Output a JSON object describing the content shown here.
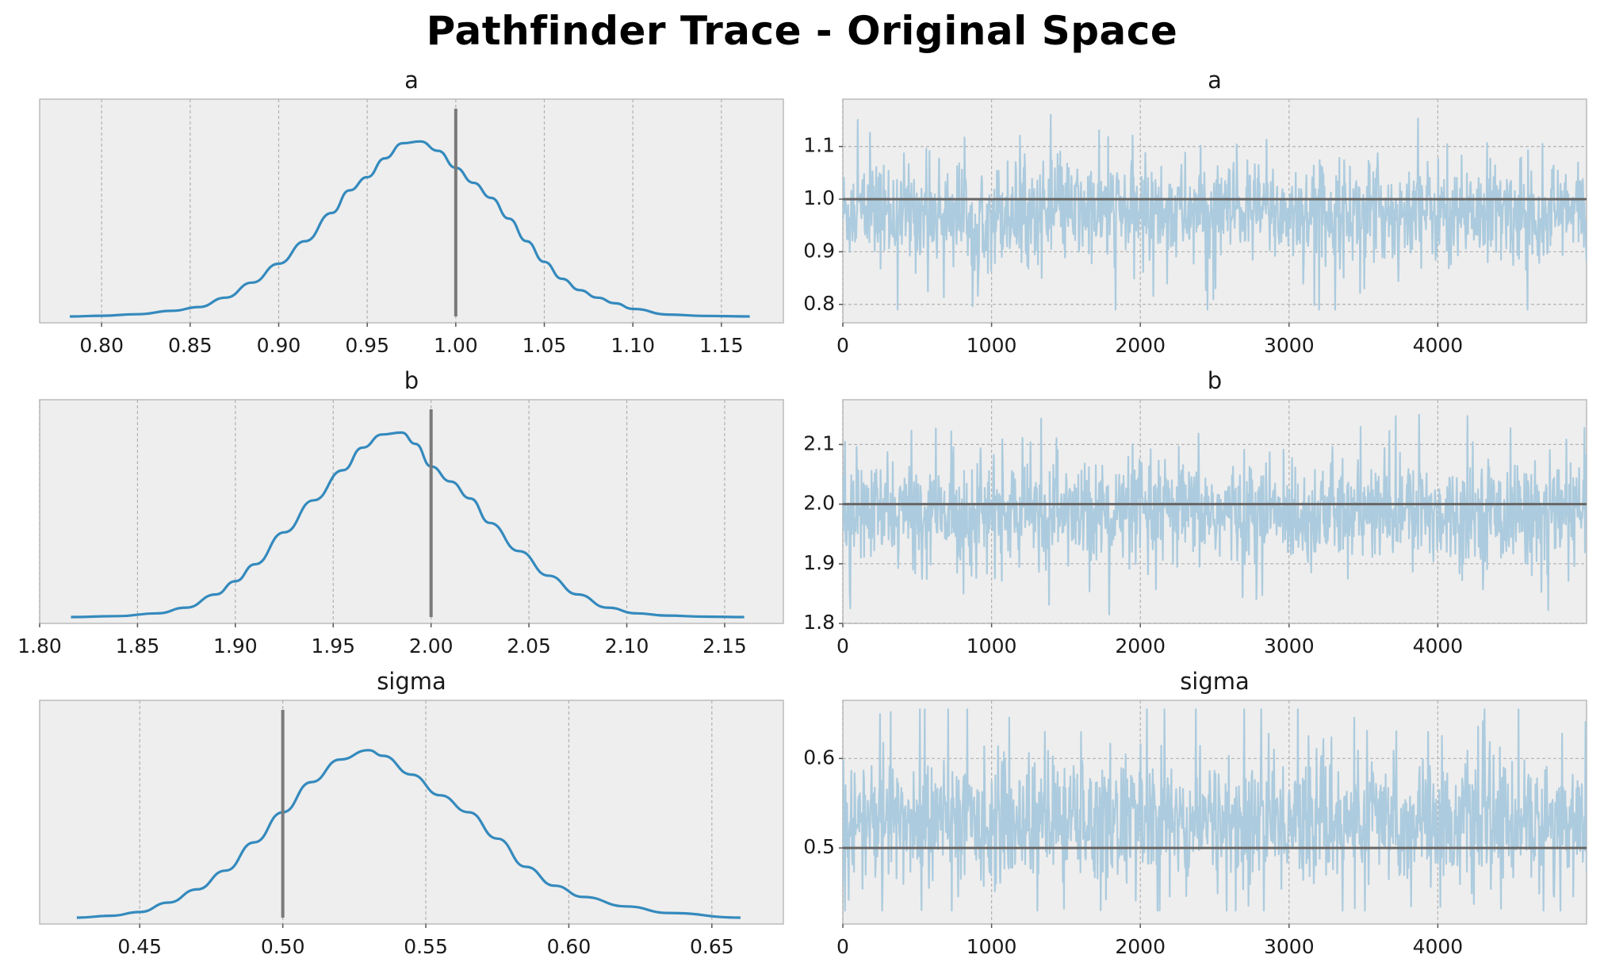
{
  "title": "Pathfinder Trace - Original Space",
  "colors": {
    "kde_line": "#348ABD",
    "trace_fill": "#A8C8DC",
    "ref_line": "#7a7a7a",
    "axes_bg": "#EEEEEE",
    "grid": "#B2B2B2"
  },
  "chart_data": [
    {
      "type": "line",
      "panel": "kde",
      "title": "a",
      "xlabel": "",
      "ylabel": "",
      "xlim": [
        0.765,
        1.185
      ],
      "xticks": [
        0.8,
        0.85,
        0.9,
        0.95,
        1.0,
        1.05,
        1.1,
        1.15
      ],
      "xtick_labels": [
        "0.80",
        "0.85",
        "0.90",
        "0.95",
        "1.00",
        "1.05",
        "1.10",
        "1.15"
      ],
      "yticks": [],
      "grid": true,
      "reference_value": 1.0,
      "x": [
        0.782,
        0.8,
        0.82,
        0.84,
        0.855,
        0.87,
        0.885,
        0.9,
        0.915,
        0.93,
        0.94,
        0.95,
        0.96,
        0.97,
        0.98,
        0.99,
        1.0,
        1.01,
        1.02,
        1.03,
        1.04,
        1.05,
        1.06,
        1.07,
        1.08,
        1.09,
        1.1,
        1.12,
        1.14,
        1.166
      ],
      "y": [
        0.0,
        0.004,
        0.012,
        0.03,
        0.05,
        0.1,
        0.18,
        0.28,
        0.4,
        0.55,
        0.67,
        0.74,
        0.84,
        0.92,
        0.93,
        0.88,
        0.79,
        0.71,
        0.63,
        0.52,
        0.4,
        0.29,
        0.2,
        0.14,
        0.1,
        0.07,
        0.04,
        0.01,
        0.003,
        0.0
      ]
    },
    {
      "type": "line",
      "panel": "trace",
      "title": "a",
      "xlabel": "",
      "ylabel": "",
      "xlim": [
        0,
        5000
      ],
      "ylim": [
        0.765,
        1.19
      ],
      "xticks": [
        0,
        1000,
        2000,
        3000,
        4000
      ],
      "xtick_labels": [
        "0",
        "1000",
        "2000",
        "3000",
        "4000"
      ],
      "yticks": [
        0.8,
        0.9,
        1.0,
        1.1
      ],
      "ytick_labels": [
        "0.8",
        "0.9",
        "1.0",
        "1.1"
      ],
      "grid": true,
      "reference_value": 1.0,
      "n_draws": 5000,
      "center": 0.975,
      "band": [
        0.88,
        1.07
      ],
      "extremes": [
        0.79,
        1.16
      ]
    },
    {
      "type": "line",
      "panel": "kde",
      "title": "b",
      "xlabel": "",
      "ylabel": "",
      "xlim": [
        1.8,
        2.18
      ],
      "xticks": [
        1.8,
        1.85,
        1.9,
        1.95,
        2.0,
        2.05,
        2.1,
        2.15
      ],
      "xtick_labels": [
        "1.80",
        "1.85",
        "1.90",
        "1.95",
        "2.00",
        "2.05",
        "2.10",
        "2.15"
      ],
      "yticks": [],
      "grid": true,
      "reference_value": 2.0,
      "x": [
        1.816,
        1.84,
        1.86,
        1.875,
        1.89,
        1.9,
        1.91,
        1.925,
        1.94,
        1.955,
        1.965,
        1.975,
        1.985,
        1.992,
        2.0,
        2.01,
        2.02,
        2.03,
        2.045,
        2.06,
        2.075,
        2.09,
        2.105,
        2.12,
        2.14,
        2.16
      ],
      "y": [
        0.0,
        0.005,
        0.02,
        0.05,
        0.12,
        0.19,
        0.28,
        0.45,
        0.62,
        0.78,
        0.9,
        0.97,
        0.98,
        0.92,
        0.8,
        0.72,
        0.63,
        0.5,
        0.35,
        0.22,
        0.12,
        0.05,
        0.02,
        0.008,
        0.002,
        0.0
      ]
    },
    {
      "type": "line",
      "panel": "trace",
      "title": "b",
      "xlabel": "",
      "ylabel": "",
      "xlim": [
        0,
        5000
      ],
      "ylim": [
        1.8,
        2.175
      ],
      "xticks": [
        0,
        1000,
        2000,
        3000,
        4000
      ],
      "xtick_labels": [
        "0",
        "1000",
        "2000",
        "3000",
        "4000"
      ],
      "yticks": [
        1.8,
        1.9,
        2.0,
        2.1
      ],
      "ytick_labels": [
        "1.8",
        "1.9",
        "2.0",
        "2.1"
      ],
      "grid": true,
      "reference_value": 2.0,
      "n_draws": 5000,
      "center": 1.985,
      "band": [
        1.9,
        2.07
      ],
      "extremes": [
        1.815,
        2.16
      ]
    },
    {
      "type": "line",
      "panel": "kde",
      "title": "sigma",
      "xlabel": "",
      "ylabel": "",
      "xlim": [
        0.415,
        0.675
      ],
      "xticks": [
        0.45,
        0.5,
        0.55,
        0.6,
        0.65
      ],
      "xtick_labels": [
        "0.45",
        "0.50",
        "0.55",
        "0.60",
        "0.65"
      ],
      "yticks": [],
      "grid": true,
      "reference_value": 0.5,
      "x": [
        0.428,
        0.44,
        0.45,
        0.46,
        0.47,
        0.48,
        0.49,
        0.5,
        0.51,
        0.52,
        0.53,
        0.535,
        0.545,
        0.555,
        0.565,
        0.575,
        0.585,
        0.595,
        0.605,
        0.62,
        0.635,
        0.66
      ],
      "y": [
        0.0,
        0.01,
        0.03,
        0.08,
        0.15,
        0.25,
        0.4,
        0.56,
        0.72,
        0.84,
        0.89,
        0.86,
        0.76,
        0.65,
        0.56,
        0.42,
        0.27,
        0.17,
        0.11,
        0.06,
        0.025,
        0.0
      ]
    },
    {
      "type": "line",
      "panel": "trace",
      "title": "sigma",
      "xlabel": "",
      "ylabel": "",
      "xlim": [
        0,
        5000
      ],
      "ylim": [
        0.415,
        0.665
      ],
      "xticks": [
        0,
        1000,
        2000,
        3000,
        4000
      ],
      "xtick_labels": [
        "0",
        "1000",
        "2000",
        "3000",
        "4000"
      ],
      "yticks": [
        0.5,
        0.6
      ],
      "ytick_labels": [
        "0.5",
        "0.6"
      ],
      "grid": true,
      "reference_value": 0.5,
      "n_draws": 5000,
      "center": 0.53,
      "band": [
        0.46,
        0.6
      ],
      "extremes": [
        0.43,
        0.655
      ]
    }
  ]
}
